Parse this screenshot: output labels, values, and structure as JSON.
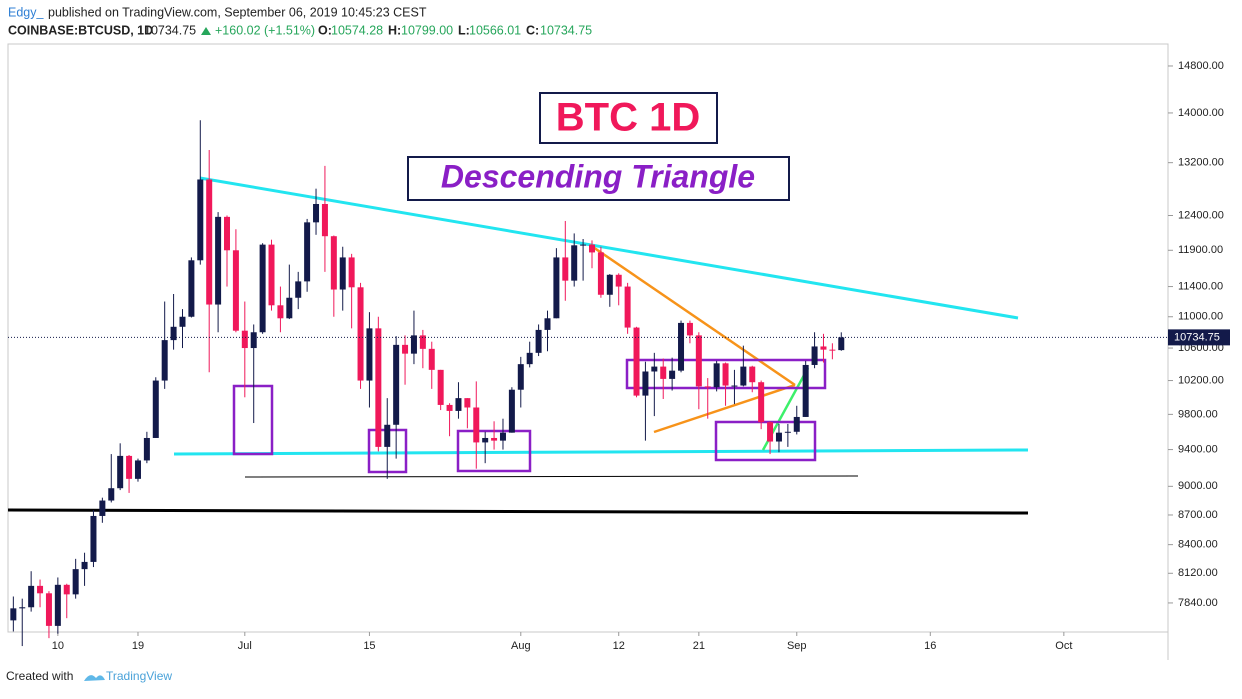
{
  "header": {
    "author": "Edgy_",
    "published": "published on TradingView.com, September 06, 2019 10:45:23 CEST",
    "symbol": "COINBASE:BTCUSD, 1D",
    "last": "10734.75",
    "change": "+160.02 (+1.51%)",
    "o_label": "O:",
    "o": "10574.28",
    "h_label": "H:",
    "h": "10799.00",
    "l_label": "L:",
    "l": "10566.01",
    "c_label": "C:",
    "c": "10734.75"
  },
  "annotations": {
    "title": "BTC 1D",
    "pattern": "Descending Triangle"
  },
  "footer": {
    "created": "Created with",
    "brand": "TradingView"
  },
  "chart_data": {
    "type": "candlestick",
    "log": true,
    "up_color": "#131a4a",
    "down_color": "#f0185a",
    "xlim": [
      3.4,
      133.7
    ],
    "ylim": [
      7575,
      15190
    ],
    "xticks": [
      {
        "value": 9,
        "label": "10"
      },
      {
        "value": 18,
        "label": "19"
      },
      {
        "value": 30,
        "label": "Jul"
      },
      {
        "value": 44,
        "label": "15"
      },
      {
        "value": 61,
        "label": "Aug"
      },
      {
        "value": 72,
        "label": "12"
      },
      {
        "value": 81,
        "label": "21"
      },
      {
        "value": 92,
        "label": "Sep"
      },
      {
        "value": 107,
        "label": "16"
      },
      {
        "value": 122,
        "label": "Oct"
      }
    ],
    "yticks": [
      {
        "value": 7840,
        "label": "7840.00"
      },
      {
        "value": 8120,
        "label": "8120.00"
      },
      {
        "value": 8400,
        "label": "8400.00"
      },
      {
        "value": 8700,
        "label": "8700.00"
      },
      {
        "value": 9000,
        "label": "9000.00"
      },
      {
        "value": 9400,
        "label": "9400.00"
      },
      {
        "value": 9800,
        "label": "9800.00"
      },
      {
        "value": 10200,
        "label": "10200.00"
      },
      {
        "value": 10600,
        "label": "10600.00"
      },
      {
        "value": 11000,
        "label": "11000.00"
      },
      {
        "value": 11400,
        "label": "11400.00"
      },
      {
        "value": 11900,
        "label": "11900.00"
      },
      {
        "value": 12400,
        "label": "12400.00"
      },
      {
        "value": 13200,
        "label": "13200.00"
      },
      {
        "value": 14000,
        "label": "14000.00"
      },
      {
        "value": 14800,
        "label": "14800.00"
      }
    ],
    "x": [
      4,
      5,
      6,
      7,
      8,
      9,
      10,
      11,
      12,
      13,
      14,
      15,
      16,
      17,
      18,
      19,
      20,
      21,
      22,
      23,
      24,
      25,
      26,
      27,
      28,
      29,
      30,
      31,
      32,
      33,
      34,
      35,
      36,
      37,
      38,
      39,
      40,
      41,
      42,
      43,
      44,
      45,
      46,
      47,
      48,
      49,
      50,
      51,
      52,
      53,
      54,
      55,
      56,
      57,
      58,
      59,
      60,
      61,
      62,
      63,
      64,
      65,
      66,
      67,
      68,
      69,
      70,
      71,
      72,
      73,
      74,
      75,
      76,
      77,
      78,
      79,
      80,
      81,
      82,
      83,
      84,
      85,
      86,
      87,
      88,
      89,
      90,
      91,
      92,
      93,
      94,
      95,
      96,
      97
    ],
    "open": [
      7680,
      7790,
      7800,
      8000,
      7930,
      7630,
      8010,
      7920,
      8160,
      8230,
      8690,
      8850,
      8980,
      9330,
      9080,
      9280,
      9530,
      10200,
      10700,
      10870,
      11000,
      11760,
      12940,
      11160,
      12380,
      11900,
      10820,
      10600,
      10800,
      11980,
      11150,
      10980,
      11250,
      11470,
      12300,
      12570,
      12100,
      11360,
      11800,
      11390,
      10200,
      10850,
      9430,
      9680,
      10640,
      10530,
      10760,
      10590,
      10330,
      9910,
      9840,
      9990,
      9880,
      9480,
      9530,
      9500,
      9590,
      10090,
      10400,
      10540,
      10830,
      10980,
      11800,
      11480,
      11970,
      11980,
      11870,
      11290,
      11560,
      11400,
      10860,
      10020,
      10310,
      10370,
      10220,
      10320,
      10920,
      10760,
      10130,
      10120,
      10410,
      10140,
      10140,
      10370,
      10180,
      9710,
      9490,
      9590,
      9600,
      9770,
      10390,
      10620,
      10580,
      10574.28
    ],
    "high": [
      7900,
      7880,
      8140,
      8060,
      7950,
      8080,
      8020,
      8260,
      8320,
      8750,
      8880,
      9350,
      9470,
      9340,
      9300,
      9600,
      10240,
      11200,
      11300,
      11100,
      11800,
      13880,
      13400,
      12450,
      12400,
      12200,
      11200,
      10900,
      12000,
      12050,
      11400,
      11700,
      11600,
      12350,
      12800,
      13150,
      12110,
      11950,
      11850,
      11450,
      11060,
      11000,
      9990,
      10750,
      10760,
      11080,
      10830,
      10680,
      10330,
      9930,
      10180,
      9990,
      10190,
      9600,
      9720,
      9750,
      10120,
      10490,
      10680,
      10900,
      11080,
      11930,
      12320,
      12140,
      12060,
      12040,
      11950,
      11570,
      11580,
      11450,
      10870,
      10430,
      10540,
      10470,
      10480,
      10950,
      10950,
      10800,
      10230,
      10440,
      10420,
      10330,
      10630,
      10380,
      10200,
      9720,
      9690,
      9690,
      9900,
      10440,
      10800,
      10780,
      10660,
      10799
    ],
    "low": [
      7580,
      7450,
      7760,
      7800,
      7520,
      7560,
      7700,
      7880,
      8000,
      8180,
      8620,
      8830,
      8960,
      8930,
      9050,
      9250,
      9530,
      10100,
      10580,
      10600,
      10990,
      11700,
      10300,
      10800,
      11400,
      10800,
      10000,
      9700,
      10780,
      11080,
      10800,
      10970,
      11100,
      11330,
      12120,
      11600,
      11000,
      11080,
      10850,
      10100,
      9880,
      9380,
      9080,
      9300,
      10150,
      10400,
      10350,
      10100,
      9850,
      9550,
      9750,
      9640,
      9190,
      9250,
      9400,
      9400,
      9590,
      9880,
      10360,
      10500,
      10560,
      10980,
      11210,
      11400,
      11480,
      11650,
      11250,
      11130,
      11150,
      10780,
      10000,
      9500,
      9780,
      9980,
      10080,
      10300,
      10660,
      9860,
      9750,
      10070,
      9900,
      9920,
      10130,
      10060,
      9630,
      9350,
      9370,
      9430,
      9570,
      9770,
      10350,
      10420,
      10460,
      10566.01
    ],
    "close": [
      7790,
      7800,
      8000,
      7930,
      7630,
      8010,
      7920,
      8160,
      8230,
      8690,
      8850,
      8980,
      9330,
      9080,
      9280,
      9530,
      10200,
      10700,
      10870,
      11000,
      11760,
      12940,
      11160,
      12380,
      11900,
      10820,
      10600,
      10800,
      11980,
      11150,
      10980,
      11250,
      11470,
      12300,
      12570,
      12100,
      11360,
      11800,
      11390,
      10200,
      10850,
      9430,
      9680,
      10640,
      10530,
      10760,
      10590,
      10330,
      9910,
      9840,
      9990,
      9880,
      9480,
      9530,
      9500,
      9590,
      10090,
      10400,
      10540,
      10830,
      10980,
      11800,
      11480,
      11970,
      11980,
      11870,
      11290,
      11560,
      11400,
      10860,
      10020,
      10310,
      10370,
      10220,
      10320,
      10920,
      10760,
      10130,
      10120,
      10410,
      10140,
      10140,
      10370,
      10180,
      9710,
      9490,
      9590,
      9600,
      9770,
      10390,
      10620,
      10580,
      10574.28,
      10734.75
    ]
  }
}
